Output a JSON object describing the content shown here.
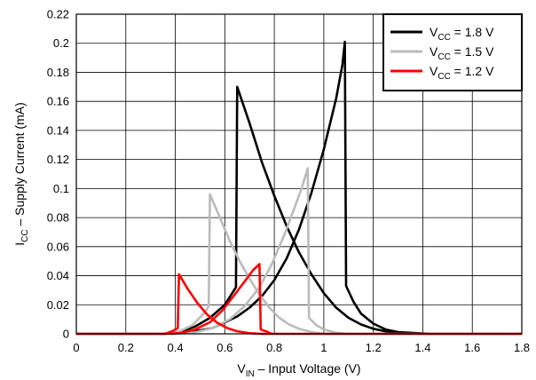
{
  "chart_data": {
    "type": "line",
    "xlabel": {
      "main": "V",
      "sub": "IN",
      "rest": " – Input Voltage (V)"
    },
    "ylabel": {
      "main": "I",
      "sub": "CC",
      "rest": " – Supply Current (mA)"
    },
    "xlim": [
      0,
      1.8
    ],
    "ylim": [
      0,
      0.22
    ],
    "xticks": [
      0,
      0.2,
      0.4,
      0.6,
      0.8,
      1,
      1.2,
      1.4,
      1.6,
      1.8
    ],
    "xtick_labels": [
      "0",
      "0.2",
      "0.4",
      "0.6",
      "0.8",
      "1",
      "1.2",
      "1.4",
      "1.6",
      "1.8"
    ],
    "yticks": [
      0,
      0.02,
      0.04,
      0.06,
      0.08,
      0.1,
      0.12,
      0.14,
      0.16,
      0.18,
      0.2,
      0.22
    ],
    "ytick_labels": [
      "0",
      "0.02",
      "0.04",
      "0.06",
      "0.08",
      "0.1",
      "0.12",
      "0.14",
      "0.16",
      "0.18",
      "0.2",
      "0.22"
    ],
    "grid": true,
    "legend_position": "top-right",
    "series": [
      {
        "name": "VCC = 1.8 V",
        "legend": {
          "main": "V",
          "sub": "CC",
          "rest": " = 1.8 V"
        },
        "color": "#000000",
        "segments": [
          [
            [
              0.0,
              0.0
            ],
            [
              0.36,
              0.0
            ],
            [
              0.42,
              0.0015
            ],
            [
              0.48,
              0.005
            ],
            [
              0.54,
              0.011
            ],
            [
              0.6,
              0.02
            ],
            [
              0.645,
              0.032
            ],
            [
              0.65,
              0.17
            ],
            [
              0.7,
              0.145
            ],
            [
              0.75,
              0.118
            ],
            [
              0.8,
              0.095
            ],
            [
              0.85,
              0.074
            ],
            [
              0.9,
              0.056
            ],
            [
              0.95,
              0.041
            ],
            [
              1.0,
              0.028
            ],
            [
              1.05,
              0.018
            ],
            [
              1.1,
              0.011
            ],
            [
              1.15,
              0.0065
            ],
            [
              1.2,
              0.0035
            ],
            [
              1.25,
              0.0017
            ],
            [
              1.3,
              0.0006
            ],
            [
              1.4,
              0.0
            ],
            [
              1.8,
              0.0
            ]
          ],
          [
            [
              0.38,
              0.0
            ],
            [
              0.45,
              0.001
            ],
            [
              0.55,
              0.004
            ],
            [
              0.65,
              0.012
            ],
            [
              0.7,
              0.018
            ],
            [
              0.75,
              0.026
            ],
            [
              0.8,
              0.037
            ],
            [
              0.85,
              0.052
            ],
            [
              0.9,
              0.072
            ],
            [
              0.95,
              0.097
            ],
            [
              1.0,
              0.127
            ],
            [
              1.05,
              0.162
            ],
            [
              1.075,
              0.185
            ],
            [
              1.085,
              0.201
            ],
            [
              1.09,
              0.033
            ],
            [
              1.12,
              0.022
            ],
            [
              1.15,
              0.014
            ],
            [
              1.2,
              0.007
            ],
            [
              1.25,
              0.003
            ],
            [
              1.3,
              0.0012
            ],
            [
              1.43,
              0.0
            ]
          ]
        ]
      },
      {
        "name": "VCC = 1.5 V",
        "legend": {
          "main": "V",
          "sub": "CC",
          "rest": " = 1.5 V"
        },
        "color": "#bbbbbb",
        "segments": [
          [
            [
              0.0,
              0.0
            ],
            [
              0.36,
              0.0
            ],
            [
              0.42,
              0.002
            ],
            [
              0.47,
              0.006
            ],
            [
              0.52,
              0.015
            ],
            [
              0.535,
              0.019
            ],
            [
              0.54,
              0.096
            ],
            [
              0.58,
              0.08
            ],
            [
              0.62,
              0.064
            ],
            [
              0.66,
              0.05
            ],
            [
              0.7,
              0.038
            ],
            [
              0.74,
              0.027
            ],
            [
              0.78,
              0.018
            ],
            [
              0.82,
              0.011
            ],
            [
              0.86,
              0.0065
            ],
            [
              0.9,
              0.0035
            ],
            [
              0.95,
              0.0012
            ],
            [
              1.0,
              0.0
            ],
            [
              1.8,
              0.0
            ]
          ],
          [
            [
              0.4,
              0.0
            ],
            [
              0.48,
              0.001
            ],
            [
              0.55,
              0.004
            ],
            [
              0.62,
              0.01
            ],
            [
              0.68,
              0.019
            ],
            [
              0.74,
              0.032
            ],
            [
              0.79,
              0.048
            ],
            [
              0.84,
              0.068
            ],
            [
              0.88,
              0.086
            ],
            [
              0.91,
              0.1
            ],
            [
              0.935,
              0.114
            ],
            [
              0.94,
              0.011
            ],
            [
              0.97,
              0.006
            ],
            [
              1.0,
              0.003
            ],
            [
              1.05,
              0.0008
            ],
            [
              1.1,
              0.0
            ]
          ]
        ]
      },
      {
        "name": "VCC = 1.2 V",
        "legend": {
          "main": "V",
          "sub": "CC",
          "rest": " = 1.2 V"
        },
        "color": "#ff0000",
        "segments": [
          [
            [
              0.0,
              0.0
            ],
            [
              0.36,
              0.0
            ],
            [
              0.39,
              0.002
            ],
            [
              0.41,
              0.004
            ],
            [
              0.415,
              0.041
            ],
            [
              0.45,
              0.031
            ],
            [
              0.49,
              0.021
            ],
            [
              0.53,
              0.013
            ],
            [
              0.57,
              0.0075
            ],
            [
              0.61,
              0.004
            ],
            [
              0.65,
              0.0018
            ],
            [
              0.7,
              0.0004
            ],
            [
              0.75,
              0.0
            ],
            [
              1.8,
              0.0
            ]
          ],
          [
            [
              0.35,
              0.0
            ],
            [
              0.42,
              0.0005
            ],
            [
              0.48,
              0.003
            ],
            [
              0.54,
              0.008
            ],
            [
              0.59,
              0.016
            ],
            [
              0.64,
              0.027
            ],
            [
              0.68,
              0.036
            ],
            [
              0.715,
              0.044
            ],
            [
              0.74,
              0.048
            ],
            [
              0.745,
              0.003
            ],
            [
              0.77,
              0.0015
            ],
            [
              0.79,
              0.0
            ]
          ]
        ]
      }
    ]
  }
}
